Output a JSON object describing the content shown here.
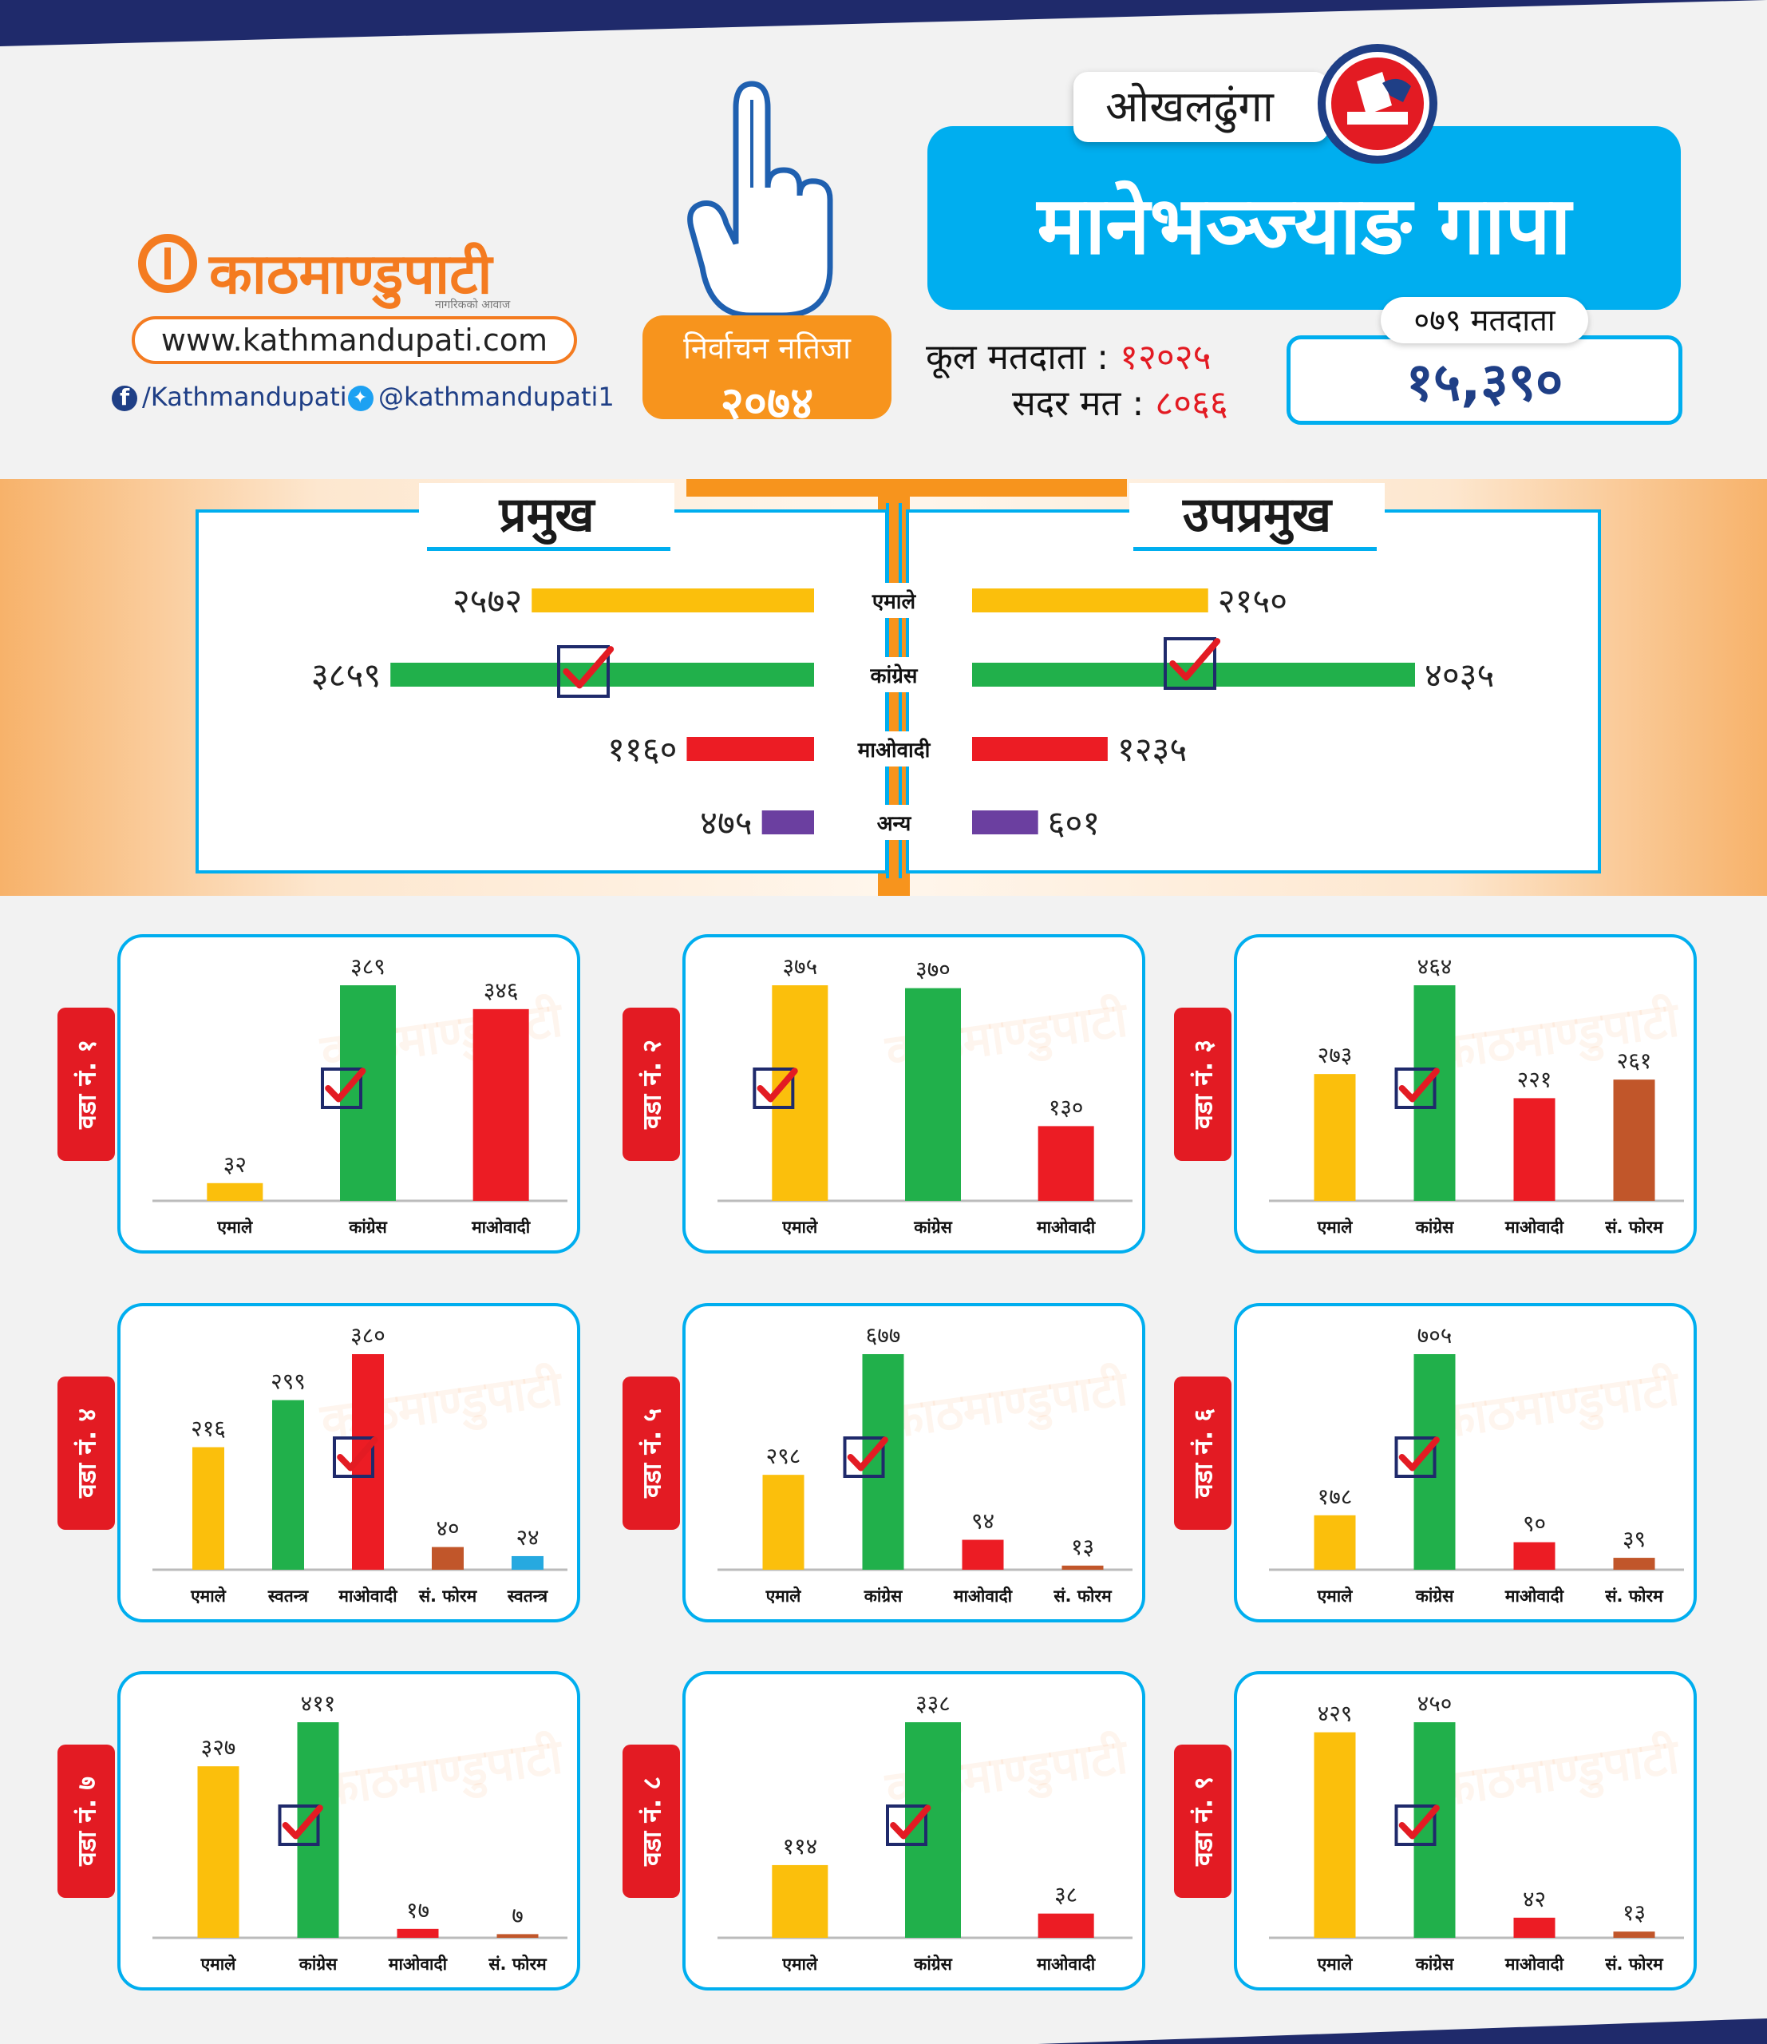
{
  "colors": {
    "emale": "#fbbf0c",
    "congress": "#21b04b",
    "maobadi": "#ec1c24",
    "forum": "#c1562a",
    "independent": "#26a9e0",
    "other": "#6b3fa0",
    "accent": "#00aeef",
    "orange": "#f7941d",
    "navy": "#1f3f86"
  },
  "brand": {
    "name": "काठमाण्डुपाटी",
    "tagline": "नागरिकको आवाज",
    "website": "www.kathmandupati.com",
    "facebook": "/Kathmandupati",
    "twitter": "@kathmandupati1"
  },
  "badge": {
    "line1": "निर्वाचन नतिजा",
    "line2": "२०७४"
  },
  "header": {
    "district": "ओखलढुंगा",
    "municipality": "मानेभञ्ज्याङ गापा"
  },
  "stats": {
    "total_label": "कूल मतदाता :",
    "total_value": "१२०२५",
    "valid_label": "सदर मत :",
    "valid_value": "८०६६",
    "voters_label": "०७९ मतदाता",
    "voters_value": "१५,३९०"
  },
  "chart_data": [
    {
      "type": "bar",
      "title": "प्रमुख",
      "categories": [
        "एमाले",
        "कांग्रेस",
        "माओवादी",
        "अन्य"
      ],
      "values": [
        2572,
        3859,
        1160,
        475
      ],
      "labels": [
        "२५७२",
        "३८५९",
        "११६०",
        "४७५"
      ],
      "winner": "कांग्रेस"
    },
    {
      "type": "bar",
      "title": "उपप्रमुख",
      "categories": [
        "एमाले",
        "कांग्रेस",
        "माओवादी",
        "अन्य"
      ],
      "values": [
        2150,
        4035,
        1235,
        601
      ],
      "labels": [
        "२१५०",
        "४०३५",
        "१२३५",
        "६०१"
      ],
      "winner": "कांग्रेस"
    },
    {
      "type": "bar",
      "title": "वडा नं. १",
      "categories": [
        "एमाले",
        "कांग्रेस",
        "माओवादी"
      ],
      "values": [
        32,
        389,
        346
      ],
      "labels": [
        "३२",
        "३८९",
        "३४६"
      ],
      "winner": "कांग्रेस"
    },
    {
      "type": "bar",
      "title": "वडा नं. २",
      "categories": [
        "एमाले",
        "कांग्रेस",
        "माओवादी"
      ],
      "values": [
        375,
        370,
        130
      ],
      "labels": [
        "३७५",
        "३७०",
        "१३०"
      ],
      "winner": "एमाले"
    },
    {
      "type": "bar",
      "title": "वडा नं. ३",
      "categories": [
        "एमाले",
        "कांग्रेस",
        "माओवादी",
        "सं. फोरम"
      ],
      "values": [
        273,
        464,
        221,
        261
      ],
      "labels": [
        "२७३",
        "४६४",
        "२२१",
        "२६१"
      ],
      "winner": "कांग्रेस"
    },
    {
      "type": "bar",
      "title": "वडा नं. ४",
      "categories": [
        "एमाले",
        "स्वतन्त्र",
        "माओवादी",
        "सं. फोरम",
        "स्वतन्त्र"
      ],
      "values": [
        216,
        299,
        380,
        40,
        24
      ],
      "labels": [
        "२१६",
        "२९९",
        "३८०",
        "४०",
        "२४"
      ],
      "winner": "माओवादी"
    },
    {
      "type": "bar",
      "title": "वडा नं. ५",
      "categories": [
        "एमाले",
        "कांग्रेस",
        "माओवादी",
        "सं. फोरम"
      ],
      "values": [
        298,
        677,
        94,
        13
      ],
      "labels": [
        "२९८",
        "६७७",
        "९४",
        "१३"
      ],
      "winner": "कांग्रेस"
    },
    {
      "type": "bar",
      "title": "वडा नं. ६",
      "categories": [
        "एमाले",
        "कांग्रेस",
        "माओवादी",
        "सं. फोरम"
      ],
      "values": [
        178,
        705,
        90,
        39
      ],
      "labels": [
        "१७८",
        "७०५",
        "९०",
        "३९"
      ],
      "winner": "कांग्रेस"
    },
    {
      "type": "bar",
      "title": "वडा नं. ७",
      "categories": [
        "एमाले",
        "कांग्रेस",
        "माओवादी",
        "सं. फोरम"
      ],
      "values": [
        327,
        411,
        17,
        7
      ],
      "labels": [
        "३२७",
        "४११",
        "१७",
        "७"
      ],
      "winner": "कांग्रेस"
    },
    {
      "type": "bar",
      "title": "वडा नं. ८",
      "categories": [
        "एमाले",
        "कांग्रेस",
        "माओवादी"
      ],
      "values": [
        114,
        338,
        38
      ],
      "labels": [
        "११४",
        "३३८",
        "३८"
      ],
      "winner": "कांग्रेस"
    },
    {
      "type": "bar",
      "title": "वडा नं. ९",
      "categories": [
        "एमाले",
        "कांग्रेस",
        "माओवादी",
        "सं. फोरम"
      ],
      "values": [
        429,
        450,
        42,
        13
      ],
      "labels": [
        "४२९",
        "४५०",
        "४२",
        "१३"
      ],
      "winner": "कांग्रेस"
    }
  ]
}
